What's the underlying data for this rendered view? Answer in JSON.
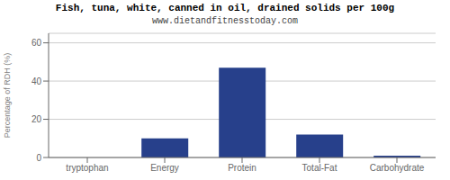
{
  "chart_data": {
    "type": "bar",
    "title": "Fish, tuna, white, canned in oil, drained solids per 100g",
    "subtitle": "www.dietandfitnesstoday.com",
    "categories": [
      "tryptophan",
      "Energy",
      "Protein",
      "Total-Fat",
      "Carbohydrate"
    ],
    "values": [
      0,
      10,
      47,
      12,
      1
    ],
    "color": "#27408b",
    "ylabel": "Percentage of RDH (%)",
    "ylim": [
      0,
      65
    ],
    "yticks": [
      0,
      20,
      40,
      60
    ],
    "grid": true
  }
}
